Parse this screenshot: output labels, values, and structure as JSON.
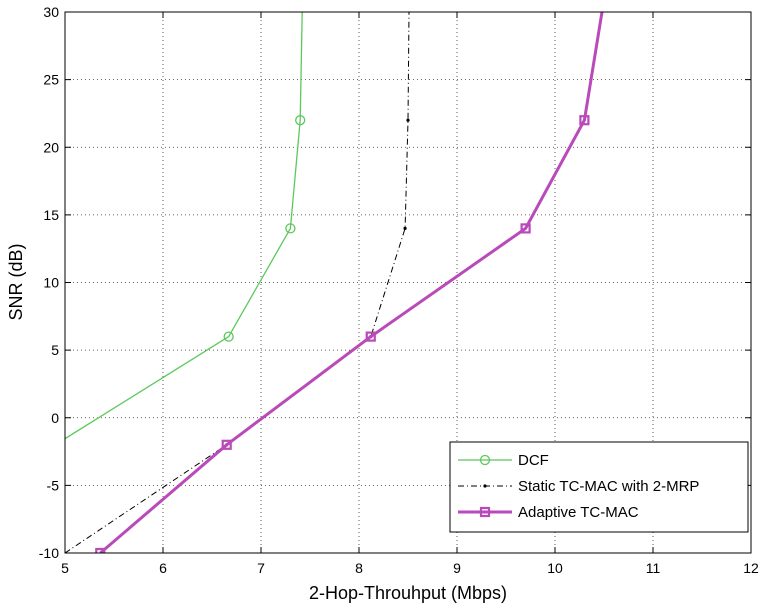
{
  "chart_data": {
    "type": "line",
    "title": "",
    "xlabel": "2-Hop-Throuhput (Mbps)",
    "ylabel": "SNR (dB)",
    "xlim": [
      5,
      12
    ],
    "ylim": [
      -10,
      30
    ],
    "xticks": [
      5,
      6,
      7,
      8,
      9,
      10,
      11,
      12
    ],
    "yticks": [
      -10,
      -5,
      0,
      5,
      10,
      15,
      20,
      25,
      30
    ],
    "grid": true,
    "legend_position": "bottom-right",
    "series": [
      {
        "name": "DCF",
        "color": "#5cc85c",
        "marker": "circle",
        "line_style": "solid",
        "points": [
          [
            4.9,
            -2
          ],
          [
            6.67,
            6
          ],
          [
            7.3,
            14
          ],
          [
            7.4,
            22
          ],
          [
            7.42,
            30
          ]
        ],
        "marked": [
          [
            6.67,
            6
          ],
          [
            7.3,
            14
          ],
          [
            7.4,
            22
          ]
        ]
      },
      {
        "name": "Static TC-MAC with 2-MRP",
        "color": "#000000",
        "marker": "dot",
        "line_style": "dash-dot",
        "points": [
          [
            5.0,
            -10
          ],
          [
            6.65,
            -2
          ],
          [
            8.12,
            6
          ],
          [
            8.47,
            14
          ],
          [
            8.5,
            22
          ],
          [
            8.51,
            30
          ]
        ],
        "marked": [
          [
            6.65,
            -2
          ],
          [
            8.12,
            6
          ],
          [
            8.47,
            14
          ],
          [
            8.5,
            22
          ]
        ]
      },
      {
        "name": "Adaptive TC-MAC",
        "color": "#b94ab9",
        "marker": "square",
        "line_style": "solid",
        "points": [
          [
            5.36,
            -10
          ],
          [
            6.65,
            -2
          ],
          [
            8.12,
            6
          ],
          [
            9.7,
            14
          ],
          [
            10.3,
            22
          ],
          [
            10.48,
            30
          ]
        ],
        "marked": [
          [
            5.36,
            -10
          ],
          [
            6.65,
            -2
          ],
          [
            8.12,
            6
          ],
          [
            9.7,
            14
          ],
          [
            10.3,
            22
          ]
        ]
      }
    ]
  }
}
